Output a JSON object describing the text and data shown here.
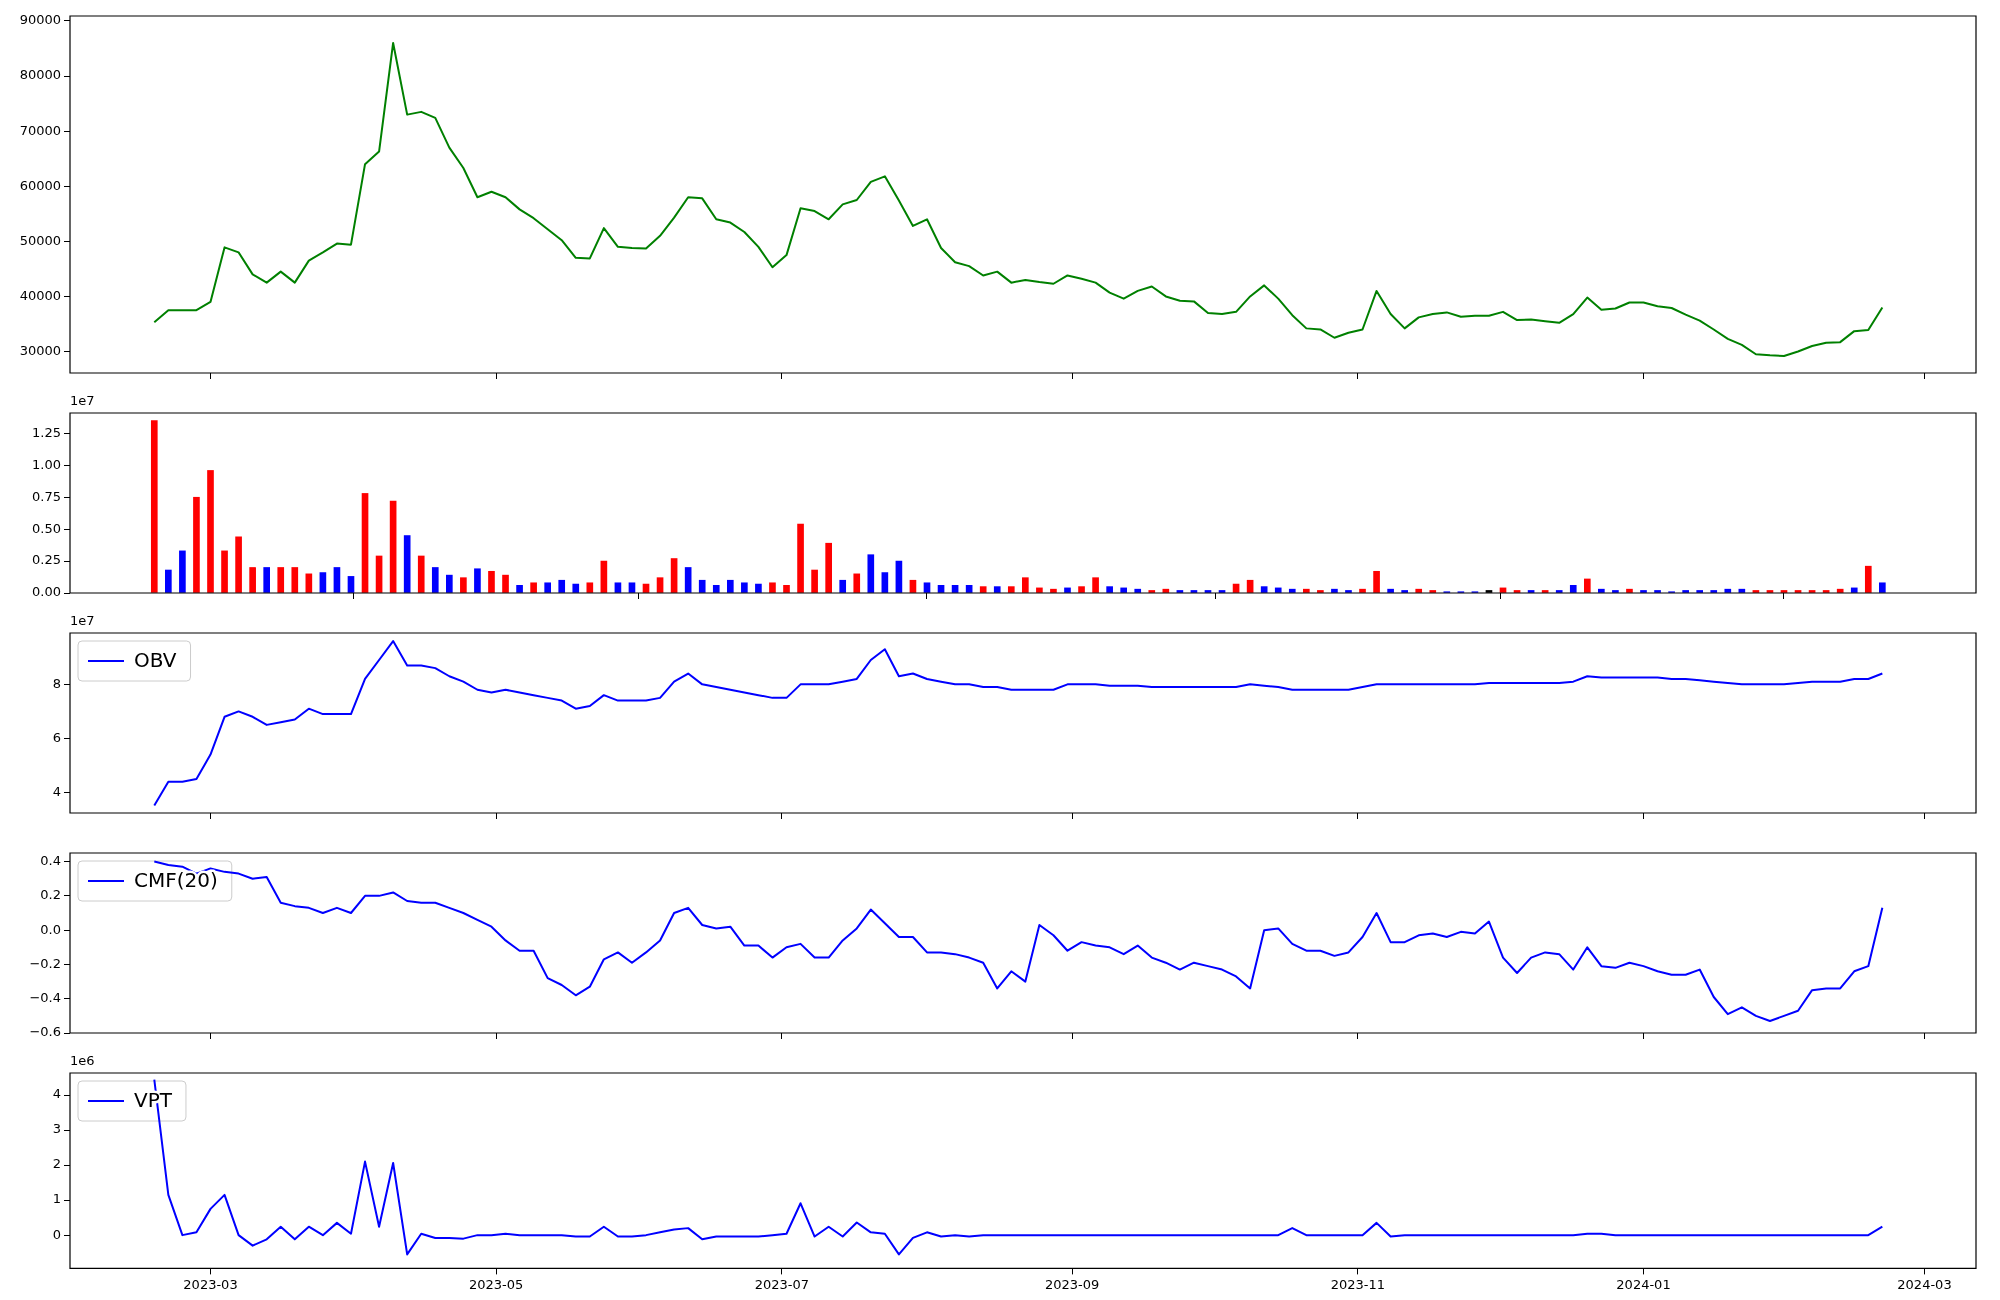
{
  "chart_data": [
    {
      "type": "line",
      "x": [
        "2023-02-17",
        "2023-02-20",
        "2023-02-23",
        "2023-02-26",
        "2023-03-01",
        "2023-03-04",
        "2023-03-07",
        "2023-03-10",
        "2023-03-13",
        "2023-03-16",
        "2023-03-19",
        "2023-03-22",
        "2023-03-25",
        "2023-03-28",
        "2023-03-31",
        "2023-04-03",
        "2023-04-06",
        "2023-04-09",
        "2023-04-12",
        "2023-04-15",
        "2023-04-18",
        "2023-04-21",
        "2023-04-24",
        "2023-04-27",
        "2023-04-30",
        "2023-05-03",
        "2023-05-06",
        "2023-05-09",
        "2023-05-12",
        "2023-05-15",
        "2023-05-18",
        "2023-05-21",
        "2023-05-24",
        "2023-05-27",
        "2023-05-30",
        "2023-06-02",
        "2023-06-05",
        "2023-06-08",
        "2023-06-11",
        "2023-06-14",
        "2023-06-17",
        "2023-06-20",
        "2023-06-23",
        "2023-06-26",
        "2023-06-29",
        "2023-07-02",
        "2023-07-05",
        "2023-07-08",
        "2023-07-11",
        "2023-07-14",
        "2023-07-17",
        "2023-07-20",
        "2023-07-23",
        "2023-07-26",
        "2023-07-29",
        "2023-08-01",
        "2023-08-04",
        "2023-08-07",
        "2023-08-10",
        "2023-08-13",
        "2023-08-16",
        "2023-08-19",
        "2023-08-22",
        "2023-08-25",
        "2023-08-28",
        "2023-08-31",
        "2023-09-03",
        "2023-09-06",
        "2023-09-09",
        "2023-09-12",
        "2023-09-15",
        "2023-09-18",
        "2023-09-21",
        "2023-09-24",
        "2023-09-27",
        "2023-09-30",
        "2023-10-03",
        "2023-10-06",
        "2023-10-09",
        "2023-10-12",
        "2023-10-15",
        "2023-10-18",
        "2023-10-21",
        "2023-10-24",
        "2023-10-27",
        "2023-10-30",
        "2023-11-02",
        "2023-11-05",
        "2023-11-08",
        "2023-11-11",
        "2023-11-14",
        "2023-11-17",
        "2023-11-20",
        "2023-11-23",
        "2023-11-26",
        "2023-11-29",
        "2023-12-02",
        "2023-12-05",
        "2023-12-08",
        "2023-12-11",
        "2023-12-14",
        "2023-12-17",
        "2023-12-20",
        "2023-12-23",
        "2023-12-26",
        "2023-12-29",
        "2024-01-01",
        "2024-01-04",
        "2024-01-07",
        "2024-01-10",
        "2024-01-13",
        "2024-01-16",
        "2024-01-19",
        "2024-01-22",
        "2024-01-25",
        "2024-01-28",
        "2024-01-31",
        "2024-02-03",
        "2024-02-06",
        "2024-02-09",
        "2024-02-12",
        "2024-02-15",
        "2024-02-18",
        "2024-02-21"
      ],
      "series": [
        {
          "color": "#008000",
          "values": [
            35300,
            37500,
            37500,
            37500,
            39000,
            48900,
            48000,
            44000,
            42500,
            44500,
            42500,
            46500,
            48000,
            49600,
            49400,
            64000,
            66300,
            86000,
            73000,
            73500,
            72400,
            67000,
            63300,
            58000,
            59000,
            58000,
            55800,
            54200,
            52200,
            50200,
            47000,
            46900,
            52400,
            49000,
            48800,
            48700,
            51000,
            54300,
            58000,
            57800,
            54000,
            53400,
            51700,
            49000,
            45300,
            47500,
            56000,
            55500,
            54000,
            56700,
            57500,
            60800,
            61800,
            57400,
            52800,
            54000,
            48800,
            46200,
            45500,
            43800,
            44500,
            42500,
            43000,
            42600,
            42300,
            43800,
            43200,
            42500,
            40700,
            39600,
            41000,
            41800,
            40000,
            39200,
            39100,
            37000,
            36800,
            37200,
            40000,
            42000,
            39600,
            36600,
            34200,
            34000,
            32500,
            33400,
            34000,
            41000,
            36800,
            34200,
            36200,
            36800,
            37100,
            36300,
            36500,
            36500,
            37200,
            35700,
            35800,
            35500,
            35200,
            36800,
            39800,
            37600,
            37800,
            38900,
            38900,
            38200,
            37900,
            36700,
            35600,
            34000,
            32300,
            31200,
            29500,
            29300,
            29200,
            30000,
            31000,
            31600,
            31700,
            33700,
            33900,
            38000
          ]
        }
      ],
      "xlim": [
        "2023-01-30",
        "2024-03-12"
      ],
      "xticks": [
        {
          "value": "2023-03-01",
          "label": null
        },
        {
          "value": "2023-05-01",
          "label": null
        },
        {
          "value": "2023-07-01",
          "label": null
        },
        {
          "value": "2023-09-01",
          "label": null
        },
        {
          "value": "2023-11-01",
          "label": null
        },
        {
          "value": "2024-01-01",
          "label": null
        },
        {
          "value": "2024-03-01",
          "label": null
        }
      ],
      "ylim": [
        26100,
        90900
      ],
      "yticks": [
        30000,
        40000,
        50000,
        60000,
        70000,
        80000,
        90000
      ],
      "tick_labels": "y"
    },
    {
      "type": "bar",
      "x": [
        "2023-02-17",
        "2023-02-20",
        "2023-02-23",
        "2023-02-26",
        "2023-03-01",
        "2023-03-04",
        "2023-03-07",
        "2023-03-10",
        "2023-03-13",
        "2023-03-16",
        "2023-03-19",
        "2023-03-22",
        "2023-03-25",
        "2023-03-28",
        "2023-03-31",
        "2023-04-03",
        "2023-04-06",
        "2023-04-09",
        "2023-04-12",
        "2023-04-15",
        "2023-04-18",
        "2023-04-21",
        "2023-04-24",
        "2023-04-27",
        "2023-04-30",
        "2023-05-03",
        "2023-05-06",
        "2023-05-09",
        "2023-05-12",
        "2023-05-15",
        "2023-05-18",
        "2023-05-21",
        "2023-05-24",
        "2023-05-27",
        "2023-05-30",
        "2023-06-02",
        "2023-06-05",
        "2023-06-08",
        "2023-06-11",
        "2023-06-14",
        "2023-06-17",
        "2023-06-20",
        "2023-06-23",
        "2023-06-26",
        "2023-06-29",
        "2023-07-02",
        "2023-07-05",
        "2023-07-08",
        "2023-07-11",
        "2023-07-14",
        "2023-07-17",
        "2023-07-20",
        "2023-07-23",
        "2023-07-26",
        "2023-07-29",
        "2023-08-01",
        "2023-08-04",
        "2023-08-07",
        "2023-08-10",
        "2023-08-13",
        "2023-08-16",
        "2023-08-19",
        "2023-08-22",
        "2023-08-25",
        "2023-08-28",
        "2023-08-31",
        "2023-09-03",
        "2023-09-06",
        "2023-09-09",
        "2023-09-12",
        "2023-09-15",
        "2023-09-18",
        "2023-09-21",
        "2023-09-24",
        "2023-09-27",
        "2023-09-30",
        "2023-10-03",
        "2023-10-06",
        "2023-10-09",
        "2023-10-12",
        "2023-10-15",
        "2023-10-18",
        "2023-10-21",
        "2023-10-24",
        "2023-10-27",
        "2023-10-30",
        "2023-11-02",
        "2023-11-05",
        "2023-11-08",
        "2023-11-11",
        "2023-11-14",
        "2023-11-17",
        "2023-11-20",
        "2023-11-23",
        "2023-11-26",
        "2023-11-29",
        "2023-12-02",
        "2023-12-05",
        "2023-12-08",
        "2023-12-11",
        "2023-12-14",
        "2023-12-17",
        "2023-12-20",
        "2023-12-23",
        "2023-12-26",
        "2023-12-29",
        "2024-01-01",
        "2024-01-04",
        "2024-01-07",
        "2024-01-10",
        "2024-01-13",
        "2024-01-16",
        "2024-01-19",
        "2024-01-22",
        "2024-01-25",
        "2024-01-28",
        "2024-01-31",
        "2024-02-03",
        "2024-02-06",
        "2024-02-09",
        "2024-02-12",
        "2024-02-15",
        "2024-02-18",
        "2024-02-21"
      ],
      "series": [
        {
          "values": [
            1.35,
            0.18,
            0.33,
            0.75,
            0.96,
            0.33,
            0.44,
            0.2,
            0.2,
            0.2,
            0.2,
            0.15,
            0.16,
            0.2,
            0.13,
            0.78,
            0.29,
            0.72,
            0.45,
            0.29,
            0.2,
            0.14,
            0.12,
            0.19,
            0.17,
            0.14,
            0.06,
            0.08,
            0.08,
            0.1,
            0.07,
            0.08,
            0.25,
            0.08,
            0.08,
            0.07,
            0.12,
            0.27,
            0.2,
            0.1,
            0.06,
            0.1,
            0.08,
            0.07,
            0.08,
            0.06,
            0.54,
            0.18,
            0.39,
            0.1,
            0.15,
            0.3,
            0.16,
            0.25,
            0.1,
            0.08,
            0.06,
            0.06,
            0.06,
            0.05,
            0.05,
            0.05,
            0.12,
            0.04,
            0.03,
            0.04,
            0.05,
            0.12,
            0.05,
            0.04,
            0.03,
            0.02,
            0.03,
            0.02,
            0.02,
            0.02,
            0.02,
            0.07,
            0.1,
            0.05,
            0.04,
            0.03,
            0.03,
            0.02,
            0.03,
            0.02,
            0.03,
            0.17,
            0.03,
            0.02,
            0.03,
            0.02,
            0.01,
            0.01,
            0.01,
            0.02,
            0.04,
            0.02,
            0.02,
            0.02,
            0.02,
            0.06,
            0.11,
            0.03,
            0.02,
            0.03,
            0.02,
            0.02,
            0.01,
            0.02,
            0.02,
            0.02,
            0.03,
            0.03,
            0.02,
            0.02,
            0.02,
            0.02,
            0.02,
            0.02,
            0.03,
            0.04,
            0.21,
            0.08
          ],
          "colors": [
            "#ff0000",
            "#0000ff",
            "#0000ff",
            "#ff0000",
            "#ff0000",
            "#ff0000",
            "#ff0000",
            "#ff0000",
            "#0000ff",
            "#ff0000",
            "#ff0000",
            "#ff0000",
            "#0000ff",
            "#0000ff",
            "#0000ff",
            "#ff0000",
            "#ff0000",
            "#ff0000",
            "#0000ff",
            "#ff0000",
            "#0000ff",
            "#0000ff",
            "#ff0000",
            "#0000ff",
            "#ff0000",
            "#ff0000",
            "#0000ff",
            "#ff0000",
            "#0000ff",
            "#0000ff",
            "#0000ff",
            "#ff0000",
            "#ff0000",
            "#0000ff",
            "#0000ff",
            "#ff0000",
            "#ff0000",
            "#ff0000",
            "#0000ff",
            "#0000ff",
            "#0000ff",
            "#0000ff",
            "#0000ff",
            "#0000ff",
            "#ff0000",
            "#ff0000",
            "#ff0000",
            "#ff0000",
            "#ff0000",
            "#0000ff",
            "#ff0000",
            "#0000ff",
            "#0000ff",
            "#0000ff",
            "#ff0000",
            "#0000ff",
            "#0000ff",
            "#0000ff",
            "#0000ff",
            "#ff0000",
            "#0000ff",
            "#ff0000",
            "#ff0000",
            "#ff0000",
            "#ff0000",
            "#0000ff",
            "#ff0000",
            "#ff0000",
            "#0000ff",
            "#0000ff",
            "#0000ff",
            "#ff0000",
            "#ff0000",
            "#0000ff",
            "#0000ff",
            "#0000ff",
            "#0000ff",
            "#ff0000",
            "#ff0000",
            "#0000ff",
            "#0000ff",
            "#0000ff",
            "#ff0000",
            "#ff0000",
            "#0000ff",
            "#0000ff",
            "#ff0000",
            "#ff0000",
            "#0000ff",
            "#0000ff",
            "#ff0000",
            "#ff0000",
            "#0000ff",
            "#0000ff",
            "#0000ff",
            "#000000",
            "#ff0000",
            "#ff0000",
            "#0000ff",
            "#ff0000",
            "#0000ff",
            "#0000ff",
            "#ff0000",
            "#0000ff",
            "#0000ff",
            "#ff0000",
            "#0000ff",
            "#0000ff",
            "#0000ff",
            "#0000ff",
            "#0000ff",
            "#0000ff",
            "#0000ff",
            "#0000ff",
            "#ff0000",
            "#ff0000",
            "#ff0000",
            "#ff0000",
            "#ff0000",
            "#ff0000",
            "#ff0000",
            "#0000ff",
            "#ff0000",
            "#0000ff"
          ]
        }
      ],
      "xlim": [
        "2023-01-30",
        "2024-03-12"
      ],
      "xticks": [
        {
          "value": "2023-03-01",
          "label": null
        },
        {
          "value": "2023-05-01",
          "label": null
        },
        {
          "value": "2023-07-01",
          "label": null
        },
        {
          "value": "2023-09-01",
          "label": null
        },
        {
          "value": "2023-11-01",
          "label": null
        },
        {
          "value": "2024-01-01",
          "label": null
        },
        {
          "value": "2024-03-01",
          "label": null
        }
      ],
      "ylim": [
        0,
        1.41
      ],
      "yticks": [
        {
          "value": 0,
          "label": "0.00"
        },
        {
          "value": 0.25,
          "label": "0.25"
        },
        {
          "value": 0.5,
          "label": "0.50"
        },
        {
          "value": 0.75,
          "label": "0.75"
        },
        {
          "value": 1,
          "label": "1.00"
        },
        {
          "value": 1.25,
          "label": "1.25"
        }
      ],
      "tick_labels": "y",
      "annotations": [
        "1e7"
      ]
    },
    {
      "type": "line",
      "x": [
        "2023-02-17",
        "2023-02-20",
        "2023-02-23",
        "2023-02-26",
        "2023-03-01",
        "2023-03-04",
        "2023-03-07",
        "2023-03-10",
        "2023-03-13",
        "2023-03-16",
        "2023-03-19",
        "2023-03-22",
        "2023-03-25",
        "2023-03-28",
        "2023-03-31",
        "2023-04-03",
        "2023-04-06",
        "2023-04-09",
        "2023-04-12",
        "2023-04-15",
        "2023-04-18",
        "2023-04-21",
        "2023-04-24",
        "2023-04-27",
        "2023-04-30",
        "2023-05-03",
        "2023-05-06",
        "2023-05-09",
        "2023-05-12",
        "2023-05-15",
        "2023-05-18",
        "2023-05-21",
        "2023-05-24",
        "2023-05-27",
        "2023-05-30",
        "2023-06-02",
        "2023-06-05",
        "2023-06-08",
        "2023-06-11",
        "2023-06-14",
        "2023-06-17",
        "2023-06-20",
        "2023-06-23",
        "2023-06-26",
        "2023-06-29",
        "2023-07-02",
        "2023-07-05",
        "2023-07-08",
        "2023-07-11",
        "2023-07-14",
        "2023-07-17",
        "2023-07-20",
        "2023-07-23",
        "2023-07-26",
        "2023-07-29",
        "2023-08-01",
        "2023-08-04",
        "2023-08-07",
        "2023-08-10",
        "2023-08-13",
        "2023-08-16",
        "2023-08-19",
        "2023-08-22",
        "2023-08-25",
        "2023-08-28",
        "2023-08-31",
        "2023-09-03",
        "2023-09-06",
        "2023-09-09",
        "2023-09-12",
        "2023-09-15",
        "2023-09-18",
        "2023-09-21",
        "2023-09-24",
        "2023-09-27",
        "2023-09-30",
        "2023-10-03",
        "2023-10-06",
        "2023-10-09",
        "2023-10-12",
        "2023-10-15",
        "2023-10-18",
        "2023-10-21",
        "2023-10-24",
        "2023-10-27",
        "2023-10-30",
        "2023-11-02",
        "2023-11-05",
        "2023-11-08",
        "2023-11-11",
        "2023-11-14",
        "2023-11-17",
        "2023-11-20",
        "2023-11-23",
        "2023-11-26",
        "2023-11-29",
        "2023-12-02",
        "2023-12-05",
        "2023-12-08",
        "2023-12-11",
        "2023-12-14",
        "2023-12-17",
        "2023-12-20",
        "2023-12-23",
        "2023-12-26",
        "2023-12-29",
        "2024-01-01",
        "2024-01-04",
        "2024-01-07",
        "2024-01-10",
        "2024-01-13",
        "2024-01-16",
        "2024-01-19",
        "2024-01-22",
        "2024-01-25",
        "2024-01-28",
        "2024-01-31",
        "2024-02-03",
        "2024-02-06",
        "2024-02-09",
        "2024-02-12",
        "2024-02-15",
        "2024-02-18",
        "2024-02-21"
      ],
      "series": [
        {
          "name": "OBV",
          "color": "#0000ff",
          "values": [
            3.52,
            4.4,
            4.4,
            4.5,
            5.4,
            6.8,
            7.0,
            6.8,
            6.5,
            6.6,
            6.7,
            7.1,
            6.9,
            6.9,
            6.9,
            8.2,
            8.9,
            9.6,
            8.7,
            8.7,
            8.6,
            8.3,
            8.1,
            7.8,
            7.7,
            7.8,
            7.7,
            7.6,
            7.5,
            7.4,
            7.1,
            7.2,
            7.6,
            7.4,
            7.4,
            7.4,
            7.5,
            8.1,
            8.4,
            8.0,
            7.9,
            7.8,
            7.7,
            7.6,
            7.5,
            7.5,
            8.0,
            8.0,
            8.0,
            8.1,
            8.2,
            8.9,
            9.3,
            8.3,
            8.4,
            8.2,
            8.1,
            8.0,
            8.0,
            7.9,
            7.9,
            7.8,
            7.8,
            7.8,
            7.8,
            8.0,
            8.0,
            8.0,
            7.95,
            7.95,
            7.95,
            7.9,
            7.9,
            7.9,
            7.9,
            7.9,
            7.9,
            7.9,
            8.0,
            7.95,
            7.9,
            7.8,
            7.8,
            7.8,
            7.8,
            7.8,
            7.9,
            8.0,
            8.0,
            8.0,
            8.0,
            8.0,
            8.0,
            8.0,
            8.0,
            8.05,
            8.05,
            8.05,
            8.05,
            8.05,
            8.05,
            8.1,
            8.3,
            8.25,
            8.25,
            8.25,
            8.25,
            8.25,
            8.2,
            8.2,
            8.15,
            8.1,
            8.05,
            8.0,
            8.0,
            8.0,
            8.0,
            8.05,
            8.1,
            8.1,
            8.1,
            8.2,
            8.2,
            8.4
          ]
        }
      ],
      "xlim": [
        "2023-01-30",
        "2024-03-12"
      ],
      "xticks": [
        {
          "value": "2023-03-01",
          "label": null
        },
        {
          "value": "2023-05-01",
          "label": null
        },
        {
          "value": "2023-07-01",
          "label": null
        },
        {
          "value": "2023-09-01",
          "label": null
        },
        {
          "value": "2023-11-01",
          "label": null
        },
        {
          "value": "2024-01-01",
          "label": null
        },
        {
          "value": "2024-03-01",
          "label": null
        }
      ],
      "ylim": [
        3.24,
        9.9
      ],
      "yticks": [
        4,
        6,
        8
      ],
      "tick_labels": "y",
      "legend": "top left",
      "annotations": [
        "1e7"
      ]
    },
    {
      "type": "line",
      "x": [
        "2023-02-17",
        "2023-02-20",
        "2023-02-23",
        "2023-02-26",
        "2023-03-01",
        "2023-03-04",
        "2023-03-07",
        "2023-03-10",
        "2023-03-13",
        "2023-03-16",
        "2023-03-19",
        "2023-03-22",
        "2023-03-25",
        "2023-03-28",
        "2023-03-31",
        "2023-04-03",
        "2023-04-06",
        "2023-04-09",
        "2023-04-12",
        "2023-04-15",
        "2023-04-18",
        "2023-04-21",
        "2023-04-24",
        "2023-04-27",
        "2023-04-30",
        "2023-05-03",
        "2023-05-06",
        "2023-05-09",
        "2023-05-12",
        "2023-05-15",
        "2023-05-18",
        "2023-05-21",
        "2023-05-24",
        "2023-05-27",
        "2023-05-30",
        "2023-06-02",
        "2023-06-05",
        "2023-06-08",
        "2023-06-11",
        "2023-06-14",
        "2023-06-17",
        "2023-06-20",
        "2023-06-23",
        "2023-06-26",
        "2023-06-29",
        "2023-07-02",
        "2023-07-05",
        "2023-07-08",
        "2023-07-11",
        "2023-07-14",
        "2023-07-17",
        "2023-07-20",
        "2023-07-23",
        "2023-07-26",
        "2023-07-29",
        "2023-08-01",
        "2023-08-04",
        "2023-08-07",
        "2023-08-10",
        "2023-08-13",
        "2023-08-16",
        "2023-08-19",
        "2023-08-22",
        "2023-08-25",
        "2023-08-28",
        "2023-08-31",
        "2023-09-03",
        "2023-09-06",
        "2023-09-09",
        "2023-09-12",
        "2023-09-15",
        "2023-09-18",
        "2023-09-21",
        "2023-09-24",
        "2023-09-27",
        "2023-09-30",
        "2023-10-03",
        "2023-10-06",
        "2023-10-09",
        "2023-10-12",
        "2023-10-15",
        "2023-10-18",
        "2023-10-21",
        "2023-10-24",
        "2023-10-27",
        "2023-10-30",
        "2023-11-02",
        "2023-11-05",
        "2023-11-08",
        "2023-11-11",
        "2023-11-14",
        "2023-11-17",
        "2023-11-20",
        "2023-11-23",
        "2023-11-26",
        "2023-11-29",
        "2023-12-02",
        "2023-12-05",
        "2023-12-08",
        "2023-12-11",
        "2023-12-14",
        "2023-12-17",
        "2023-12-20",
        "2023-12-23",
        "2023-12-26",
        "2023-12-29",
        "2024-01-01",
        "2024-01-04",
        "2024-01-07",
        "2024-01-10",
        "2024-01-13",
        "2024-01-16",
        "2024-01-19",
        "2024-01-22",
        "2024-01-25",
        "2024-01-28",
        "2024-01-31",
        "2024-02-03",
        "2024-02-06",
        "2024-02-09",
        "2024-02-12",
        "2024-02-15",
        "2024-02-18",
        "2024-02-21"
      ],
      "series": [
        {
          "name": "CMF(20)",
          "color": "#0000ff",
          "values": [
            0.4,
            0.38,
            0.37,
            0.33,
            0.36,
            0.34,
            0.33,
            0.3,
            0.31,
            0.16,
            0.14,
            0.13,
            0.1,
            0.13,
            0.1,
            0.2,
            0.2,
            0.22,
            0.17,
            0.16,
            0.16,
            0.13,
            0.1,
            0.06,
            0.02,
            -0.06,
            -0.12,
            -0.12,
            -0.28,
            -0.32,
            -0.38,
            -0.33,
            -0.17,
            -0.13,
            -0.19,
            -0.13,
            -0.06,
            0.1,
            0.13,
            0.03,
            0.01,
            0.02,
            -0.09,
            -0.09,
            -0.16,
            -0.1,
            -0.08,
            -0.16,
            -0.16,
            -0.06,
            0.01,
            0.12,
            0.04,
            -0.04,
            -0.04,
            -0.13,
            -0.13,
            -0.14,
            -0.16,
            -0.19,
            -0.34,
            -0.24,
            -0.3,
            0.03,
            -0.03,
            -0.12,
            -0.07,
            -0.09,
            -0.1,
            -0.14,
            -0.09,
            -0.16,
            -0.19,
            -0.23,
            -0.19,
            -0.21,
            -0.23,
            -0.27,
            -0.34,
            0.0,
            0.01,
            -0.08,
            -0.12,
            -0.12,
            -0.15,
            -0.13,
            -0.04,
            0.1,
            -0.07,
            -0.07,
            -0.03,
            -0.02,
            -0.04,
            -0.01,
            -0.02,
            0.05,
            -0.16,
            -0.25,
            -0.16,
            -0.13,
            -0.14,
            -0.23,
            -0.1,
            -0.21,
            -0.22,
            -0.19,
            -0.21,
            -0.24,
            -0.26,
            -0.26,
            -0.23,
            -0.39,
            -0.49,
            -0.45,
            -0.5,
            -0.53,
            -0.5,
            -0.47,
            -0.35,
            -0.34,
            -0.34,
            -0.24,
            -0.21,
            0.13
          ]
        }
      ],
      "xlim": [
        "2023-01-30",
        "2024-03-12"
      ],
      "xticks": [
        {
          "value": "2023-03-01",
          "label": null
        },
        {
          "value": "2023-05-01",
          "label": null
        },
        {
          "value": "2023-07-01",
          "label": null
        },
        {
          "value": "2023-09-01",
          "label": null
        },
        {
          "value": "2023-11-01",
          "label": null
        },
        {
          "value": "2024-01-01",
          "label": null
        },
        {
          "value": "2024-03-01",
          "label": null
        }
      ],
      "ylim": [
        -0.6,
        0.45
      ],
      "yticks": [
        {
          "value": -0.6,
          "label": "−0.6"
        },
        {
          "value": -0.4,
          "label": "−0.4"
        },
        {
          "value": -0.2,
          "label": "−0.2"
        },
        {
          "value": 0,
          "label": "0.0"
        },
        {
          "value": 0.2,
          "label": "0.2"
        },
        {
          "value": 0.4,
          "label": "0.4"
        }
      ],
      "tick_labels": "y",
      "legend": "top left"
    },
    {
      "type": "line",
      "x": [
        "2023-02-17",
        "2023-02-20",
        "2023-02-23",
        "2023-02-26",
        "2023-03-01",
        "2023-03-04",
        "2023-03-07",
        "2023-03-10",
        "2023-03-13",
        "2023-03-16",
        "2023-03-19",
        "2023-03-22",
        "2023-03-25",
        "2023-03-28",
        "2023-03-31",
        "2023-04-03",
        "2023-04-06",
        "2023-04-09",
        "2023-04-12",
        "2023-04-15",
        "2023-04-18",
        "2023-04-21",
        "2023-04-24",
        "2023-04-27",
        "2023-04-30",
        "2023-05-03",
        "2023-05-06",
        "2023-05-09",
        "2023-05-12",
        "2023-05-15",
        "2023-05-18",
        "2023-05-21",
        "2023-05-24",
        "2023-05-27",
        "2023-05-30",
        "2023-06-02",
        "2023-06-05",
        "2023-06-08",
        "2023-06-11",
        "2023-06-14",
        "2023-06-17",
        "2023-06-20",
        "2023-06-23",
        "2023-06-26",
        "2023-06-29",
        "2023-07-02",
        "2023-07-05",
        "2023-07-08",
        "2023-07-11",
        "2023-07-14",
        "2023-07-17",
        "2023-07-20",
        "2023-07-23",
        "2023-07-26",
        "2023-07-29",
        "2023-08-01",
        "2023-08-04",
        "2023-08-07",
        "2023-08-10",
        "2023-08-13",
        "2023-08-16",
        "2023-08-19",
        "2023-08-22",
        "2023-08-25",
        "2023-08-28",
        "2023-08-31",
        "2023-09-03",
        "2023-09-06",
        "2023-09-09",
        "2023-09-12",
        "2023-09-15",
        "2023-09-18",
        "2023-09-21",
        "2023-09-24",
        "2023-09-27",
        "2023-09-30",
        "2023-10-03",
        "2023-10-06",
        "2023-10-09",
        "2023-10-12",
        "2023-10-15",
        "2023-10-18",
        "2023-10-21",
        "2023-10-24",
        "2023-10-27",
        "2023-10-30",
        "2023-11-02",
        "2023-11-05",
        "2023-11-08",
        "2023-11-11",
        "2023-11-14",
        "2023-11-17",
        "2023-11-20",
        "2023-11-23",
        "2023-11-26",
        "2023-11-29",
        "2023-12-02",
        "2023-12-05",
        "2023-12-08",
        "2023-12-11",
        "2023-12-14",
        "2023-12-17",
        "2023-12-20",
        "2023-12-23",
        "2023-12-26",
        "2023-12-29",
        "2024-01-01",
        "2024-01-04",
        "2024-01-07",
        "2024-01-10",
        "2024-01-13",
        "2024-01-16",
        "2024-01-19",
        "2024-01-22",
        "2024-01-25",
        "2024-01-28",
        "2024-01-31",
        "2024-02-03",
        "2024-02-06",
        "2024-02-09",
        "2024-02-12",
        "2024-02-15",
        "2024-02-18",
        "2024-02-21"
      ],
      "series": [
        {
          "name": "VPT",
          "color": "#0000ff",
          "values": [
            4.44,
            1.15,
            0,
            0.08,
            0.75,
            1.15,
            0,
            -0.3,
            -0.12,
            0.24,
            -0.12,
            0.24,
            0,
            0.35,
            0.04,
            2.1,
            0.24,
            2.06,
            -0.55,
            0.04,
            -0.08,
            -0.08,
            -0.1,
            0,
            0,
            0.04,
            0,
            0,
            0,
            0,
            -0.04,
            -0.04,
            0.24,
            -0.04,
            -0.04,
            0,
            0.08,
            0.16,
            0.2,
            -0.12,
            -0.04,
            -0.04,
            -0.04,
            -0.04,
            0,
            0.04,
            0.91,
            -0.04,
            0.24,
            -0.04,
            0.36,
            0.08,
            0.04,
            -0.55,
            -0.08,
            0.08,
            -0.04,
            0,
            -0.04,
            0,
            0,
            0,
            0,
            0,
            0,
            0,
            0,
            0,
            0,
            0,
            0,
            0,
            0,
            0,
            0,
            0,
            0,
            0,
            0,
            0,
            0,
            0.2,
            0,
            0,
            0,
            0,
            0,
            0.35,
            -0.04,
            0,
            0,
            0,
            0,
            0,
            0,
            0,
            0,
            0,
            0,
            0,
            0,
            0,
            0.04,
            0.04,
            0,
            0,
            0,
            0,
            0,
            0,
            0,
            0,
            0,
            0,
            0,
            0,
            0,
            0,
            0,
            0,
            0,
            0,
            0,
            0.24
          ]
        }
      ],
      "xlim": [
        "2023-01-30",
        "2024-03-12"
      ],
      "xticks": [
        {
          "value": "2023-03-01",
          "label": "2023-03"
        },
        {
          "value": "2023-05-01",
          "label": "2023-05"
        },
        {
          "value": "2023-07-01",
          "label": "2023-07"
        },
        {
          "value": "2023-09-01",
          "label": "2023-09"
        },
        {
          "value": "2023-11-01",
          "label": "2023-11"
        },
        {
          "value": "2024-01-01",
          "label": "2024-01"
        },
        {
          "value": "2024-03-01",
          "label": "2024-03"
        }
      ],
      "ylim": [
        -0.95,
        4.63
      ],
      "yticks": [
        0,
        1,
        2,
        3,
        4
      ],
      "legend": "top left",
      "annotations": [
        "1e6"
      ]
    }
  ]
}
